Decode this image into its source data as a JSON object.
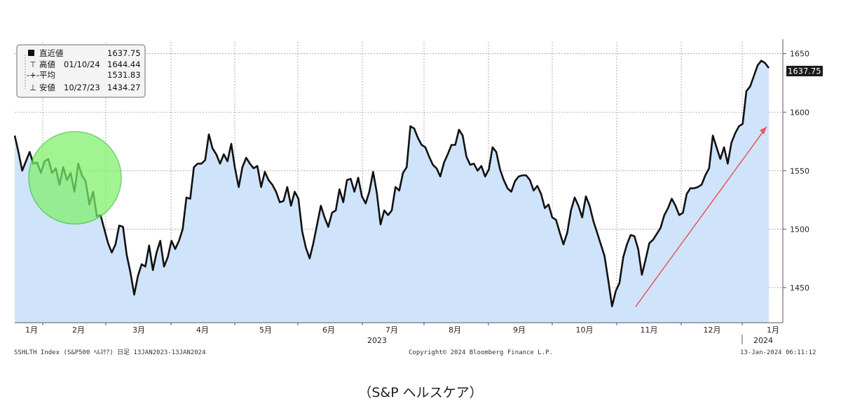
{
  "caption": "（S&P ヘルスケア）",
  "colors": {
    "line": "#111111",
    "fill": "#cfe4fb",
    "grid": "#9a9a9a",
    "arrow": "#e8575e",
    "circle_fill": "#7ff06a",
    "circle_stroke": "#3cc43c",
    "last_label_bg": "#1a1a1a",
    "last_label_text": "#ffffff"
  },
  "legend": {
    "rows": [
      {
        "label": "直近値",
        "date": "",
        "value": "1637.75"
      },
      {
        "label": "高値",
        "date": "01/10/24",
        "value": "1644.44"
      },
      {
        "label": "平均",
        "date": "",
        "value": "1531.83"
      },
      {
        "label": "安値",
        "date": "10/27/23",
        "value": "1434.27"
      }
    ]
  },
  "footer": {
    "left": "SSHLTH Index (S&P500 ﾍﾙｽｹｱ)  日足 13JAN2023-13JAN2024",
    "center": "Copyright© 2024 Bloomberg Finance L.P.",
    "right": "13-Jan-2024 06:11:12"
  },
  "chart_data": {
    "type": "area",
    "title": "",
    "xlabel": "",
    "ylabel": "",
    "ylim": [
      1420,
      1660
    ],
    "yticks": [
      1450,
      1500,
      1550,
      1600,
      1650
    ],
    "grid": true,
    "y_axis_side": "right",
    "x_month_labels": [
      "1月",
      "2月",
      "3月",
      "4月",
      "5月",
      "6月",
      "7月",
      "8月",
      "9月",
      "10月",
      "11月",
      "12月",
      "1月"
    ],
    "x_year_labels": [
      "2023",
      "2024"
    ],
    "last_value_label": "1637.75",
    "series": [
      {
        "values": [
          1580,
          1566,
          1550,
          1558,
          1566,
          1556,
          1557,
          1548,
          1558,
          1560,
          1548,
          1552,
          1538,
          1553,
          1542,
          1548,
          1532,
          1556,
          1546,
          1541,
          1521,
          1532,
          1511,
          1512,
          1500,
          1488,
          1480,
          1487,
          1503,
          1502,
          1478,
          1463,
          1444,
          1460,
          1470,
          1468,
          1486,
          1465,
          1480,
          1490,
          1468,
          1476,
          1490,
          1483,
          1490,
          1500,
          1527,
          1526,
          1553,
          1556,
          1556,
          1559,
          1581,
          1569,
          1564,
          1556,
          1564,
          1558,
          1573,
          1552,
          1536,
          1553,
          1561,
          1556,
          1552,
          1554,
          1536,
          1549,
          1542,
          1538,
          1532,
          1523,
          1524,
          1536,
          1520,
          1532,
          1526,
          1498,
          1484,
          1475,
          1488,
          1504,
          1520,
          1510,
          1502,
          1514,
          1516,
          1534,
          1523,
          1542,
          1543,
          1532,
          1544,
          1528,
          1522,
          1532,
          1549,
          1531,
          1504,
          1516,
          1512,
          1516,
          1536,
          1533,
          1548,
          1553,
          1588,
          1586,
          1578,
          1572,
          1570,
          1562,
          1555,
          1552,
          1545,
          1557,
          1564,
          1572,
          1572,
          1585,
          1580,
          1562,
          1555,
          1556,
          1550,
          1554,
          1545,
          1551,
          1570,
          1566,
          1551,
          1542,
          1535,
          1532,
          1541,
          1545,
          1546,
          1546,
          1542,
          1533,
          1537,
          1530,
          1518,
          1521,
          1510,
          1508,
          1497,
          1487,
          1497,
          1516,
          1527,
          1520,
          1510,
          1528,
          1520,
          1507,
          1497,
          1487,
          1477,
          1456,
          1434,
          1447,
          1454,
          1476,
          1487,
          1495,
          1494,
          1483,
          1461,
          1474,
          1488,
          1491,
          1496,
          1501,
          1512,
          1518,
          1526,
          1520,
          1512,
          1514,
          1530,
          1535,
          1535,
          1536,
          1538,
          1546,
          1552,
          1580,
          1570,
          1560,
          1570,
          1556,
          1574,
          1582,
          1588,
          1590,
          1618,
          1622,
          1631,
          1640,
          1644,
          1642,
          1637.75
        ]
      }
    ]
  }
}
